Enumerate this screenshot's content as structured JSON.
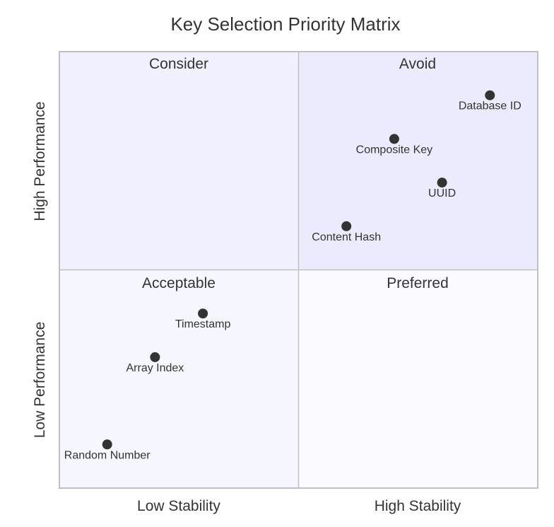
{
  "chart_data": {
    "type": "scatter",
    "title": "Key Selection Priority Matrix",
    "x_axis": {
      "low_label": "Low Stability",
      "high_label": "High Stability",
      "range": [
        0,
        1
      ]
    },
    "y_axis": {
      "low_label": "Low Performance",
      "high_label": "High Performance",
      "range": [
        0,
        1
      ]
    },
    "quadrants": {
      "top_left": {
        "label": "Consider",
        "fill": "#f0f0fe"
      },
      "top_right": {
        "label": "Avoid",
        "fill": "#ebebfd"
      },
      "bottom_left": {
        "label": "Acceptable",
        "fill": "#f6f6fe"
      },
      "bottom_right": {
        "label": "Preferred",
        "fill": "#fbfbff"
      }
    },
    "points": [
      {
        "label": "Database ID",
        "x": 0.9,
        "y": 0.9
      },
      {
        "label": "Composite Key",
        "x": 0.7,
        "y": 0.8
      },
      {
        "label": "UUID",
        "x": 0.8,
        "y": 0.7
      },
      {
        "label": "Content Hash",
        "x": 0.6,
        "y": 0.6
      },
      {
        "label": "Timestamp",
        "x": 0.3,
        "y": 0.4
      },
      {
        "label": "Array Index",
        "x": 0.2,
        "y": 0.3
      },
      {
        "label": "Random Number",
        "x": 0.1,
        "y": 0.1
      }
    ],
    "colors": {
      "point": "#333333",
      "divider": "#c0c0c0",
      "border": "#c0c0c0",
      "text": "#333333"
    }
  }
}
